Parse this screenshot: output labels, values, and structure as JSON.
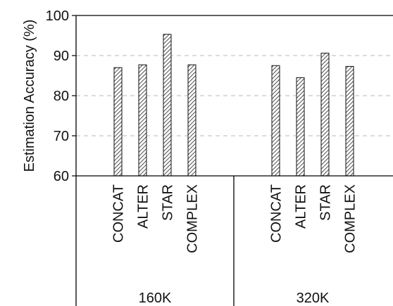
{
  "chart_data": {
    "type": "bar",
    "ylabel": "Estimation Accuracy (%)",
    "ylim": [
      60,
      100
    ],
    "yticks": [
      60,
      70,
      80,
      90,
      100
    ],
    "grid": "dashed horizontal",
    "bar_pattern": "diagonal hatch",
    "groups": [
      {
        "label": "160K",
        "categories": [
          "CONCAT",
          "ALTER",
          "STAR",
          "COMPLEX"
        ],
        "values": [
          87.0,
          87.7,
          95.3,
          87.7
        ]
      },
      {
        "label": "320K",
        "categories": [
          "CONCAT",
          "ALTER",
          "STAR",
          "COMPLEX"
        ],
        "values": [
          87.5,
          84.5,
          90.6,
          87.3
        ]
      }
    ]
  }
}
